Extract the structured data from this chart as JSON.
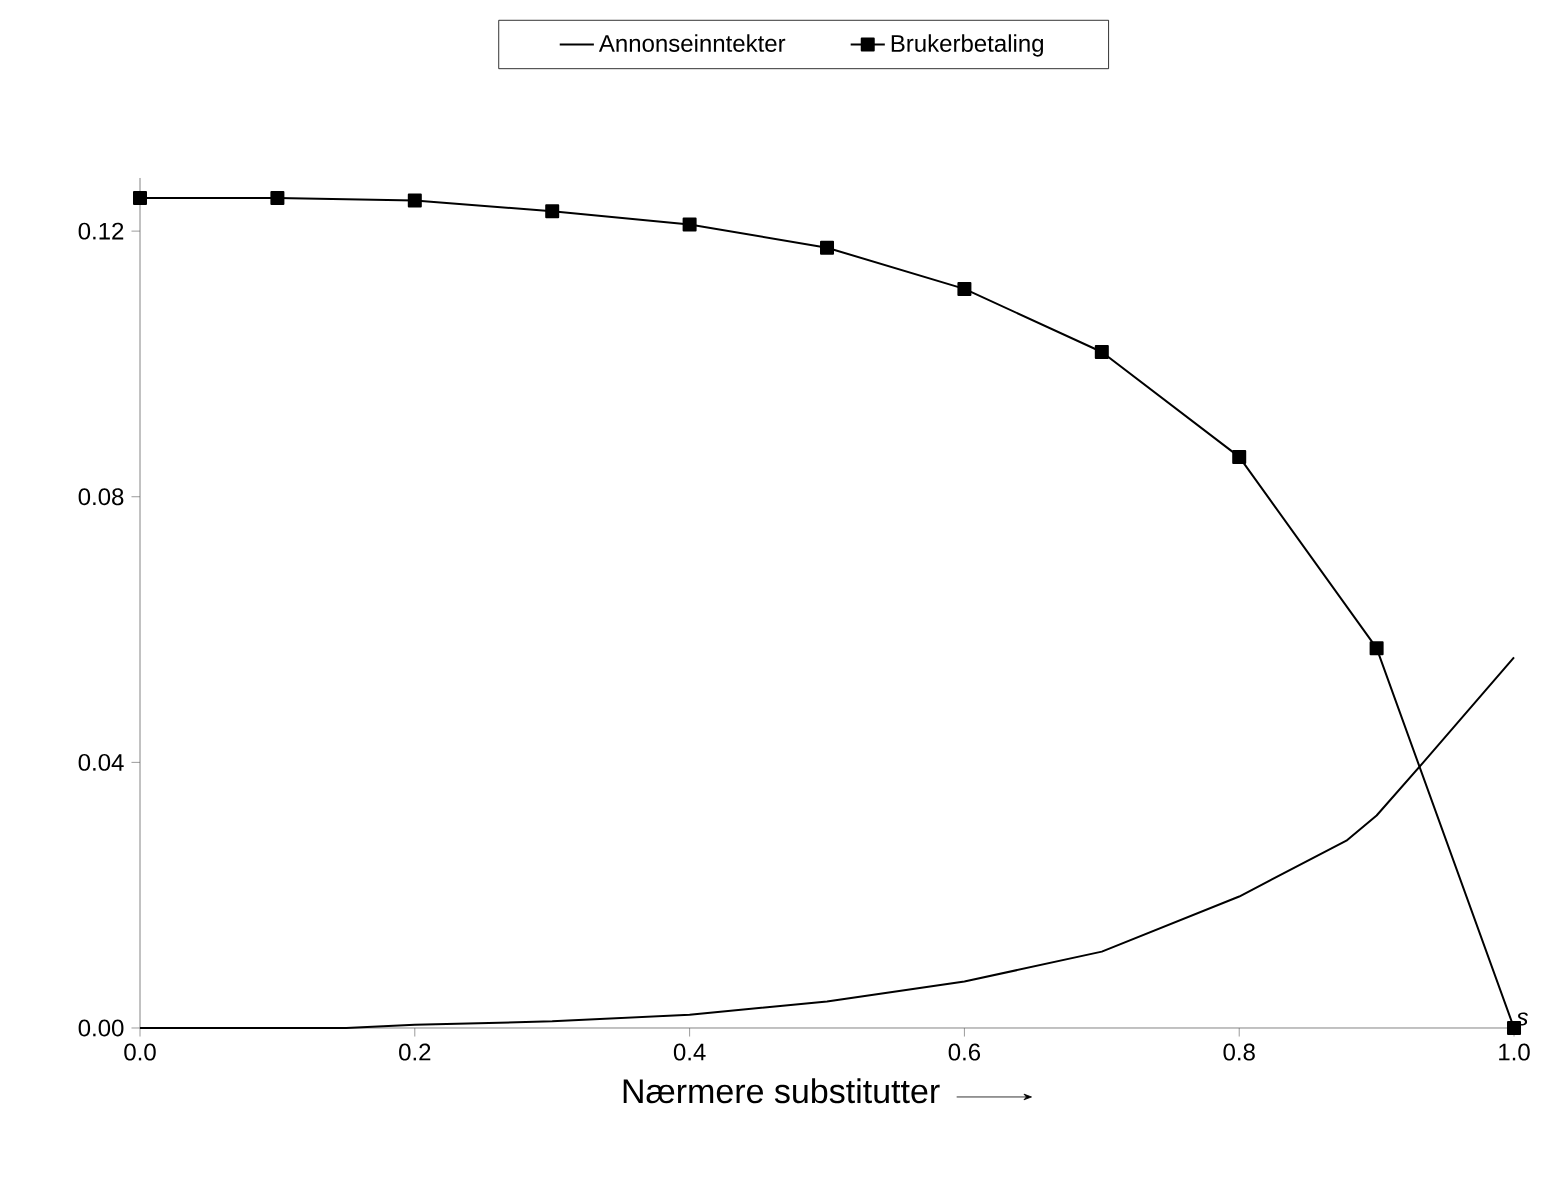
{
  "chart_data": {
    "type": "line",
    "xlabel": "Nærmere substitutter",
    "annotations": [
      "s"
    ],
    "xlim": [
      0,
      1
    ],
    "ylim": [
      0,
      0.128
    ],
    "xticks": [
      {
        "value": 0,
        "label": "0.0"
      },
      0.2,
      0.4,
      0.6,
      0.8,
      {
        "value": 1,
        "label": "1.0"
      }
    ],
    "yticks": [
      {
        "value": 0,
        "label": "0.00"
      },
      0.04,
      0.08,
      0.12
    ],
    "legend": "top",
    "grid": false,
    "series": [
      {
        "name": "Annonseinntekter",
        "color": "#000000",
        "marker": "none",
        "x": [
          0,
          0.1,
          0.15,
          0.2,
          0.3,
          0.4,
          0.5,
          0.6,
          0.7,
          0.8,
          0.878,
          0.9,
          0.934,
          1.0
        ],
        "values": [
          0,
          0,
          0,
          0.0005,
          0.001,
          0.002,
          0.004,
          0.007,
          0.0115,
          0.0198,
          0.0282,
          0.032,
          0.04,
          0.0558
        ]
      },
      {
        "name": "Brukerbetaling",
        "color": "#000000",
        "marker": "square",
        "x": [
          0,
          0.1,
          0.2,
          0.3,
          0.4,
          0.5,
          0.6,
          0.7,
          0.8,
          0.9,
          1.0
        ],
        "values": [
          0.125,
          0.125,
          0.1246,
          0.123,
          0.121,
          0.1175,
          0.1113,
          0.1018,
          0.086,
          0.0572,
          0
        ]
      }
    ]
  }
}
